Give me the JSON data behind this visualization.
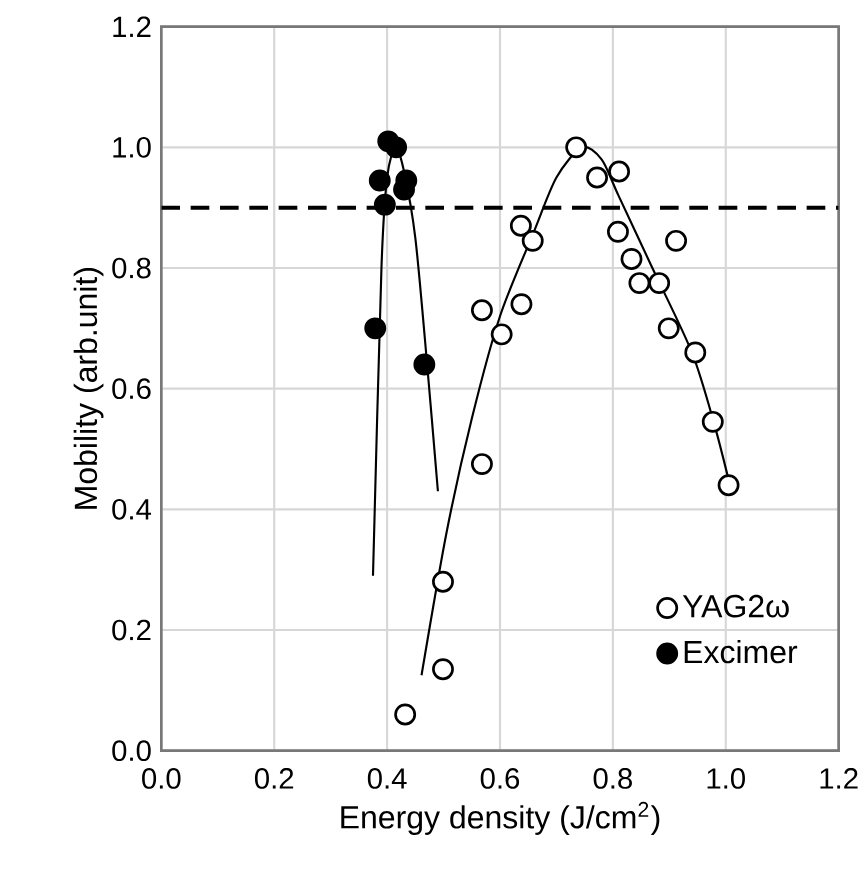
{
  "chart_data": {
    "type": "scatter",
    "xlabel": "Energy density (J/cm$^{2}$)",
    "ylabel": "Mobility (arb.unit)",
    "xlim": [
      0.0,
      1.2
    ],
    "ylim": [
      0.0,
      1.2
    ],
    "xticks": [
      {
        "value": 0,
        "label": "0.0"
      },
      0.2,
      0.4,
      0.6,
      0.8,
      {
        "value": 1,
        "label": "1.0"
      },
      1.2
    ],
    "yticks": [
      {
        "value": 0,
        "label": "0.0"
      },
      0.2,
      0.4,
      0.6,
      0.8,
      {
        "value": 1,
        "label": "1.0"
      },
      1.2
    ],
    "grid": true,
    "legend": "bottom right",
    "ref_lines": [
      {
        "axis": "y",
        "value": 0.9,
        "line_style": "dashed",
        "color": "#000000"
      }
    ],
    "series": [
      {
        "name": "YAG2ω",
        "color": "#ffffff",
        "marker": "circle",
        "x": [
          0.735,
          0.772,
          0.811,
          0.637,
          0.658,
          0.809,
          0.912,
          0.833,
          0.847,
          0.882,
          0.568,
          0.638,
          0.603,
          0.899,
          0.946,
          0.977,
          1.005,
          0.568,
          0.499,
          0.499,
          0.432
        ],
        "values": [
          1.0,
          0.95,
          0.96,
          0.87,
          0.845,
          0.86,
          0.845,
          0.815,
          0.775,
          0.775,
          0.73,
          0.74,
          0.69,
          0.7,
          0.66,
          0.545,
          0.44,
          0.475,
          0.28,
          0.135,
          0.06
        ]
      },
      {
        "name": "Excimer",
        "color": "#000000",
        "marker": "circle",
        "x": [
          0.379,
          0.387,
          0.396,
          0.402,
          0.416,
          0.434,
          0.43,
          0.466
        ],
        "values": [
          0.7,
          0.945,
          0.905,
          1.01,
          1.0,
          0.945,
          0.93,
          0.64
        ]
      },
      {
        "type": "line",
        "color": "#000000",
        "marker": "none",
        "x": [
          0.461,
          0.505,
          0.55,
          0.6,
          0.66,
          0.7,
          0.745,
          0.78,
          0.81,
          0.87,
          0.94,
          0.98,
          1.01
        ],
        "values": [
          0.125,
          0.36,
          0.55,
          0.72,
          0.86,
          0.95,
          1.0,
          0.98,
          0.92,
          0.8,
          0.66,
          0.54,
          0.43
        ]
      },
      {
        "type": "line",
        "color": "#000000",
        "marker": "none",
        "x": [
          0.375,
          0.39,
          0.4,
          0.415,
          0.43,
          0.45,
          0.47,
          0.49
        ],
        "values": [
          0.29,
          0.8,
          0.95,
          1.0,
          0.96,
          0.85,
          0.65,
          0.43
        ]
      }
    ]
  }
}
